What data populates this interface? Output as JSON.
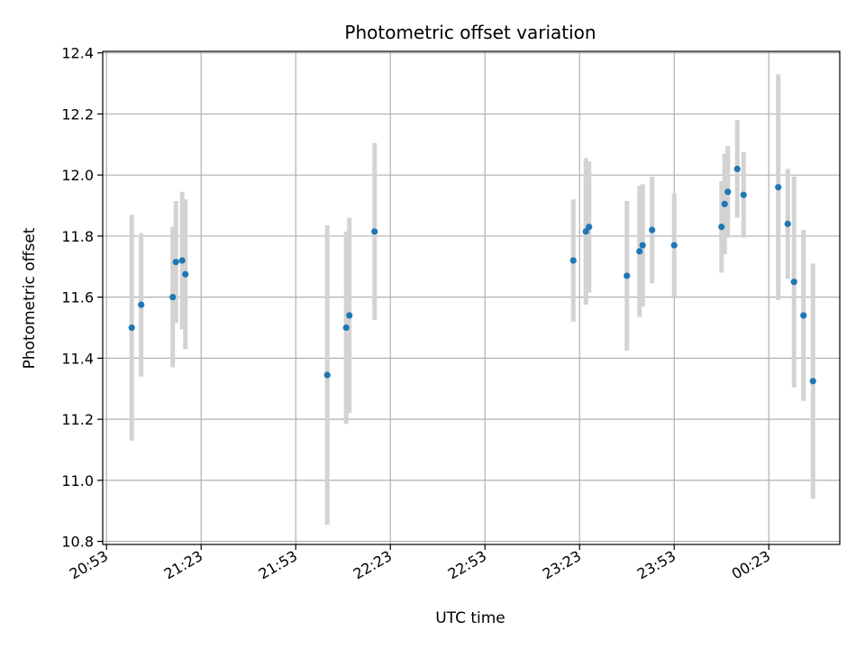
{
  "chart_data": {
    "type": "scatter",
    "title": "Photometric offset variation",
    "xlabel": "UTC time",
    "ylabel": "Photometric offset",
    "x_tick_labels": [
      "20:53",
      "21:23",
      "21:53",
      "22:23",
      "22:53",
      "23:23",
      "23:53",
      "00:23"
    ],
    "y_tick_labels": [
      "10.8",
      "11.0",
      "11.2",
      "11.4",
      "11.6",
      "11.8",
      "12.0",
      "12.2",
      "12.4"
    ],
    "xlim_minutes_after_20_53": [
      -1.2,
      232.5
    ],
    "ylim": [
      10.79,
      12.405
    ],
    "grid": true,
    "point_color": "#1f77b4",
    "errorbar_color": "#d3d3d3",
    "series": [
      {
        "x": [
          "21:01",
          "21:04",
          "21:14",
          "21:15",
          "21:17",
          "21:18",
          "22:03",
          "22:09",
          "22:10",
          "22:18",
          "23:21",
          "23:25",
          "23:26",
          "23:38",
          "23:42",
          "23:43",
          "23:46",
          "23:53",
          "00:08",
          "00:09",
          "00:10",
          "00:13",
          "00:15",
          "00:26",
          "00:29",
          "00:31",
          "00:34",
          "00:37"
        ],
        "y": [
          11.5,
          11.575,
          11.6,
          11.715,
          11.72,
          11.675,
          11.345,
          11.5,
          11.54,
          11.815,
          11.72,
          11.815,
          11.83,
          11.67,
          11.75,
          11.77,
          11.82,
          11.77,
          11.83,
          11.905,
          11.945,
          12.02,
          11.935,
          11.96,
          11.84,
          11.65,
          11.54,
          11.325
        ],
        "yerr": [
          0.37,
          0.235,
          0.23,
          0.2,
          0.225,
          0.245,
          0.49,
          0.315,
          0.32,
          0.29,
          0.2,
          0.24,
          0.215,
          0.245,
          0.215,
          0.2,
          0.175,
          0.17,
          0.15,
          0.165,
          0.15,
          0.16,
          0.14,
          0.37,
          0.18,
          0.345,
          0.28,
          0.385
        ]
      }
    ]
  }
}
